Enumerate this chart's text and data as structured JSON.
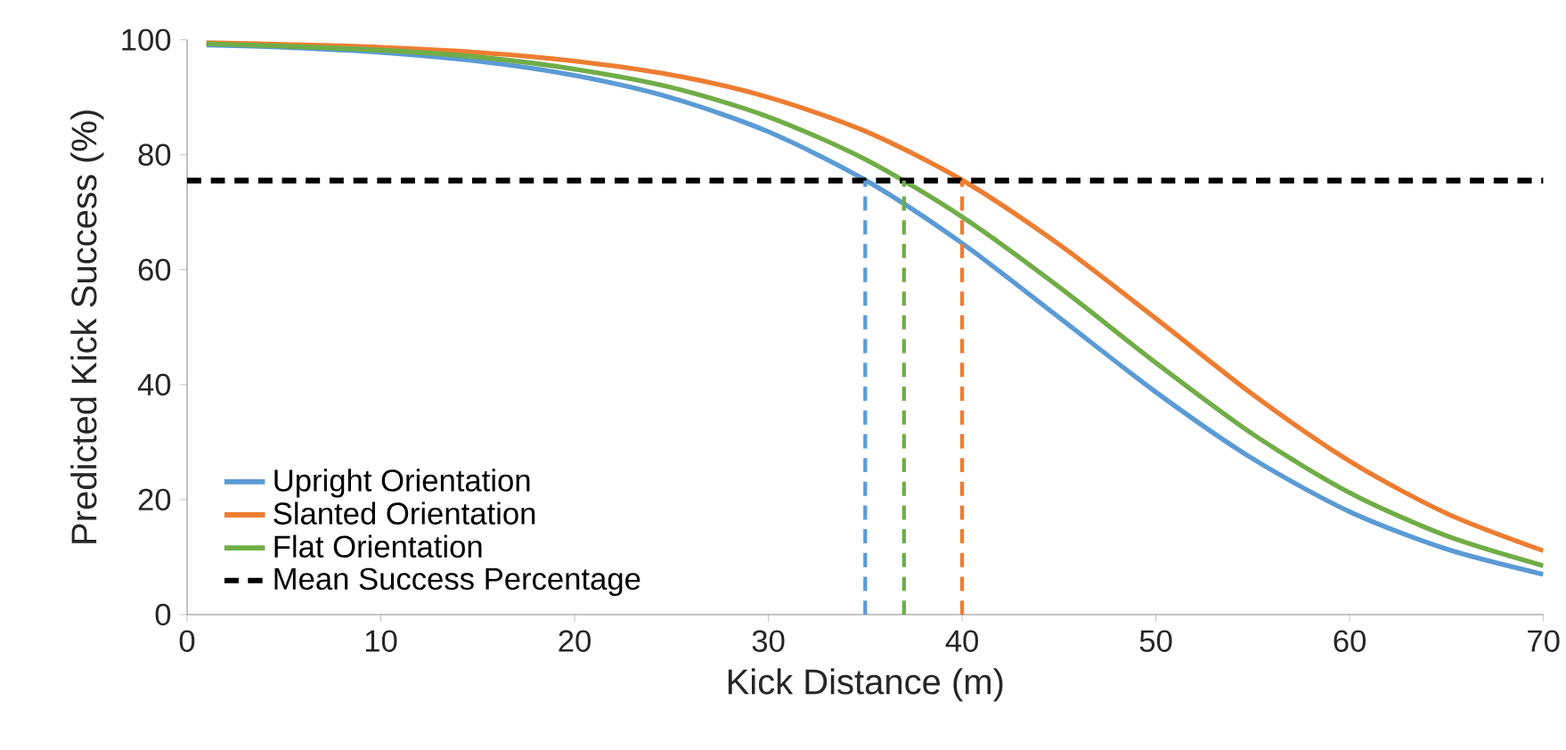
{
  "chart_data": {
    "type": "line",
    "xlabel": "Kick Distance (m)",
    "ylabel": "Predicted Kick Success (%)",
    "xlim": [
      0,
      70
    ],
    "ylim": [
      0,
      100
    ],
    "xticks": [
      0,
      10,
      20,
      30,
      40,
      50,
      60,
      70
    ],
    "yticks": [
      0,
      20,
      40,
      60,
      80,
      100
    ],
    "grid": false,
    "legend": "bottom left",
    "series": [
      {
        "name": "Upright Orientation",
        "color": "#5b9bd5",
        "line_style": "solid",
        "x": [
          1,
          5,
          10,
          15,
          20,
          25,
          30,
          35,
          40,
          45,
          50,
          55,
          60,
          65,
          70
        ],
        "values": [
          99.1,
          98.7,
          97.8,
          96.3,
          93.8,
          89.9,
          84.0,
          75.6,
          64.6,
          51.7,
          38.7,
          27.1,
          17.9,
          11.4,
          7.0
        ]
      },
      {
        "name": "Slanted Orientation",
        "color": "#ed7d31",
        "line_style": "solid",
        "x": [
          1,
          5,
          10,
          15,
          20,
          25,
          30,
          35,
          40,
          45,
          50,
          55,
          60,
          65,
          70
        ],
        "values": [
          99.5,
          99.2,
          98.7,
          97.8,
          96.3,
          93.9,
          90.0,
          84.1,
          75.6,
          64.4,
          51.5,
          38.3,
          26.7,
          17.6,
          11.1
        ]
      },
      {
        "name": "Flat Orientation",
        "color": "#70ad47",
        "line_style": "solid",
        "x": [
          1,
          5,
          10,
          15,
          20,
          25,
          30,
          35,
          40,
          45,
          50,
          55,
          60,
          65,
          70
        ],
        "values": [
          99.3,
          98.9,
          98.2,
          97.0,
          94.9,
          91.7,
          86.6,
          79.2,
          69.2,
          57.0,
          43.8,
          31.4,
          21.2,
          13.7,
          8.5
        ]
      },
      {
        "name": "Mean Success Percentage",
        "color": "#000000",
        "line_style": "dashed",
        "x": [
          0,
          70
        ],
        "values": [
          75.5,
          75.5
        ]
      },
      {
        "color": "#5b9bd5",
        "line_style": "dashed",
        "x": [
          35,
          35
        ],
        "values": [
          0,
          75.5
        ]
      },
      {
        "color": "#70ad47",
        "line_style": "dashed",
        "x": [
          37,
          37
        ],
        "values": [
          0,
          75.5
        ]
      },
      {
        "color": "#ed7d31",
        "line_style": "dashed",
        "x": [
          40,
          40
        ],
        "values": [
          0,
          75.5
        ]
      }
    ]
  }
}
